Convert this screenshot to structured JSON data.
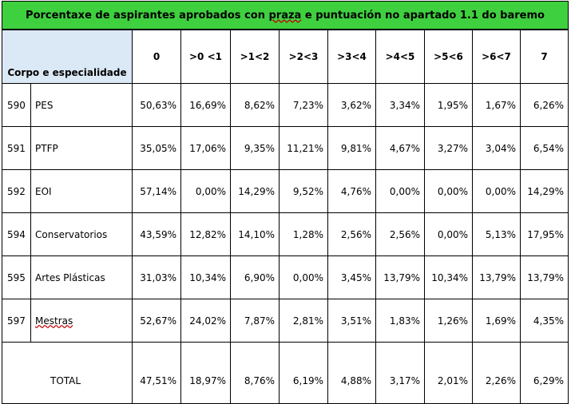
{
  "title": {
    "part1": "Porcentaxe de aspirantes aprobados con",
    "part2": "praza",
    "part3": "e puntuación no apartado 1.1 do baremo"
  },
  "header": {
    "corpo_label": "Corpo e especialidade",
    "columns": [
      "0",
      ">0 <1",
      ">1<2",
      ">2<3",
      ">3<4",
      ">4<5",
      ">5<6",
      ">6<7",
      "7"
    ]
  },
  "rows": [
    {
      "code": "590",
      "name": "PES",
      "values": [
        "50,63%",
        "16,69%",
        "8,62%",
        "7,23%",
        "3,62%",
        "3,34%",
        "1,95%",
        "1,67%",
        "6,26%"
      ]
    },
    {
      "code": "591",
      "name": "PTFP",
      "values": [
        "35,05%",
        "17,06%",
        "9,35%",
        "11,21%",
        "9,81%",
        "4,67%",
        "3,27%",
        "3,04%",
        "6,54%"
      ]
    },
    {
      "code": "592",
      "name": "EOI",
      "values": [
        "57,14%",
        "0,00%",
        "14,29%",
        "9,52%",
        "4,76%",
        "0,00%",
        "0,00%",
        "0,00%",
        "14,29%"
      ]
    },
    {
      "code": "594",
      "name": "Conservatorios",
      "values": [
        "43,59%",
        "12,82%",
        "14,10%",
        "1,28%",
        "2,56%",
        "2,56%",
        "0,00%",
        "5,13%",
        "17,95%"
      ]
    },
    {
      "code": "595",
      "name": "Artes Plásticas",
      "values": [
        "31,03%",
        "10,34%",
        "6,90%",
        "0,00%",
        "3,45%",
        "13,79%",
        "10,34%",
        "13,79%",
        "13,79%"
      ]
    },
    {
      "code": "597",
      "name": "Mestras",
      "values": [
        "52,67%",
        "24,02%",
        "7,87%",
        "2,81%",
        "3,51%",
        "1,83%",
        "1,26%",
        "1,69%",
        "4,35%"
      ]
    }
  ],
  "total": {
    "label": "TOTAL",
    "values": [
      "47,51%",
      "18,97%",
      "8,76%",
      "6,19%",
      "4,88%",
      "3,17%",
      "2,01%",
      "2,26%",
      "6,29%"
    ]
  },
  "colors": {
    "title_bg": "#3fd03f",
    "corpo_bg": "#dbe8f5"
  }
}
